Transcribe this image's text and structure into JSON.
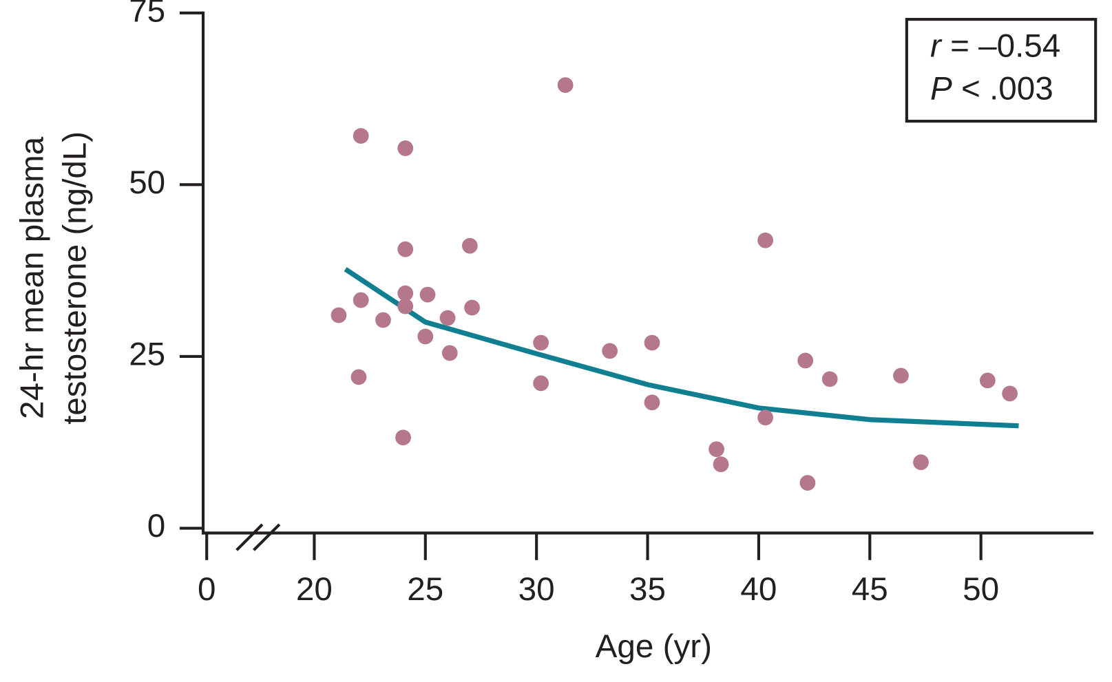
{
  "chart_data": {
    "type": "scatter",
    "xlabel": "Age (yr)",
    "ylabel": [
      "24-hr mean plasma",
      "testosterone (ng/dL)"
    ],
    "xlim": [
      0,
      55
    ],
    "xbreak": [
      0,
      15
    ],
    "xticks": [
      0,
      20,
      25,
      30,
      35,
      40,
      45,
      50
    ],
    "ylim": [
      -0.7,
      75
    ],
    "yticks": [
      0,
      25,
      50,
      75
    ],
    "color": "#b5778b",
    "x": [
      21.1,
      22.1,
      22.1,
      22.0,
      23.1,
      24.1,
      24.1,
      24.1,
      24.1,
      24.0,
      25.1,
      25.0,
      26.0,
      26.1,
      27.0,
      27.1,
      30.2,
      30.2,
      31.3,
      33.3,
      35.2,
      35.2,
      38.1,
      38.3,
      40.3,
      40.3,
      42.1,
      42.2,
      43.2,
      46.4,
      47.3,
      50.3,
      51.3
    ],
    "values": [
      31.0,
      57.1,
      33.2,
      22.0,
      30.3,
      55.3,
      40.6,
      34.2,
      32.3,
      13.2,
      34.0,
      27.9,
      30.6,
      25.5,
      41.1,
      32.1,
      27.0,
      21.1,
      64.5,
      25.8,
      27.0,
      18.3,
      11.5,
      9.3,
      41.9,
      16.1,
      24.4,
      6.6,
      21.7,
      22.2,
      9.6,
      21.5,
      19.6
    ],
    "fit": {
      "color": "#0f7f91",
      "x": [
        21.4,
        25,
        30,
        35,
        40,
        45,
        51.7
      ],
      "values": [
        37.7,
        30.0,
        25.4,
        20.9,
        17.5,
        15.8,
        14.9
      ]
    },
    "annotations": [
      {
        "symbol": "r",
        "text": "= –0.54"
      },
      {
        "symbol": "P",
        "text": "< .003"
      }
    ]
  }
}
